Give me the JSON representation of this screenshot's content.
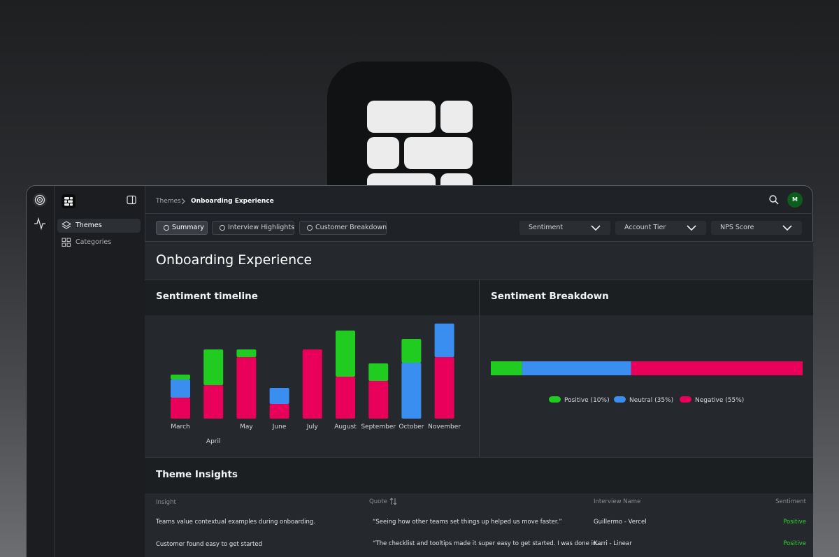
{
  "breadcrumb": [
    "Themes",
    "Onboarding Experience"
  ],
  "avatar": "M",
  "sidebar": {
    "nav": [
      "Themes",
      "Categories"
    ]
  },
  "tabs": [
    "Summary",
    "Interview Highlights",
    "Customer Breakdown"
  ],
  "filters": [
    "Sentiment",
    "Account Tier",
    "NPS Score"
  ],
  "page_title": "Onboarding Experience",
  "chart_data": [
    {
      "type": "stacked-bar",
      "title": "Sentiment timeline",
      "categories": [
        "March",
        "April",
        "May",
        "June",
        "July",
        "August",
        "September",
        "October",
        "November"
      ],
      "series": [
        {
          "color": "#e8005a",
          "values": [
            30,
            48,
            88,
            21,
            99,
            60,
            54,
            0,
            88
          ]
        },
        {
          "color": "#3a8ef0",
          "values": [
            26,
            0,
            0,
            23,
            0,
            0,
            0,
            80,
            48
          ]
        },
        {
          "color": "#1fcc1f",
          "values": [
            7,
            51,
            11,
            0,
            0,
            66,
            25,
            34,
            0
          ]
        }
      ]
    },
    {
      "type": "stacked-bar-horizontal",
      "title": "Sentiment Breakdown",
      "series": [
        {
          "name": "Positive (10%)",
          "color": "#1fcc1f",
          "values": [
            10
          ]
        },
        {
          "name": "Neutral (35%)",
          "color": "#3a8ef0",
          "values": [
            35
          ]
        },
        {
          "name": "Negative (55%)",
          "color": "#e8005a",
          "values": [
            55
          ]
        }
      ]
    }
  ],
  "insights": {
    "title": "Theme Insights",
    "columns": [
      "Insight",
      "Quote",
      "Interview Name",
      "Sentiment"
    ],
    "rows": [
      [
        "Teams value contextual examples during onboarding.",
        "“Seeing how other teams set things up helped us move faster.”",
        "Guillermo - Vercel",
        "Positive"
      ],
      [
        "Customer found easy to get started",
        "“The checklist and tooltips made it super easy to get started. I was done in...",
        "Karri - Linear",
        "Positive"
      ]
    ]
  }
}
